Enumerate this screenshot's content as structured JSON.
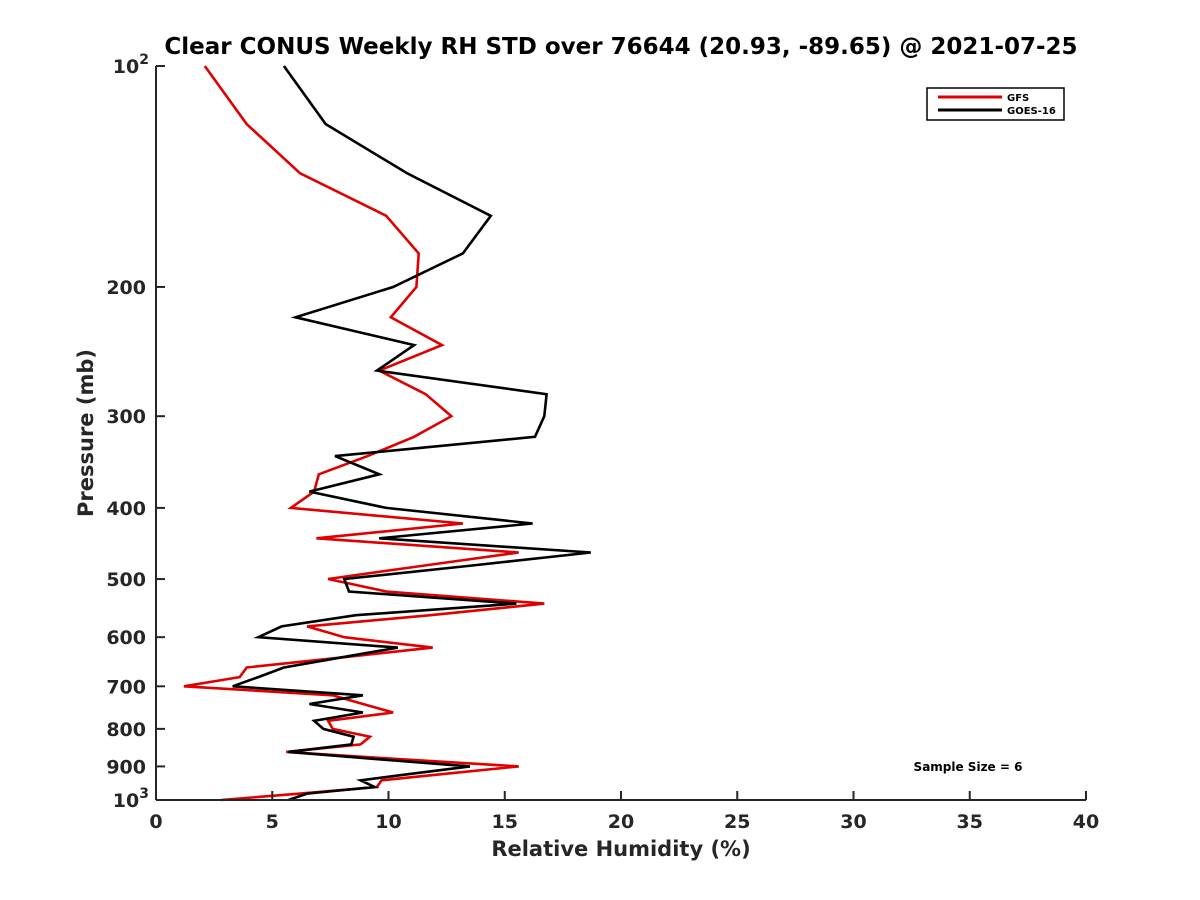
{
  "chart_data": {
    "type": "line",
    "title": "Clear CONUS Weekly RH STD over 76644 (20.93, -89.65) @ 2021-07-25",
    "xlabel": "Relative Humidity (%)",
    "ylabel": "Pressure (mb)",
    "xlim": [
      0,
      40
    ],
    "ylim": [
      100,
      1000
    ],
    "yscale": "log",
    "yreversed": true,
    "grid": false,
    "xticks": [
      0,
      5,
      10,
      15,
      20,
      25,
      30,
      35,
      40
    ],
    "xtick_labels": [
      "0",
      "5",
      "10",
      "15",
      "20",
      "25",
      "30",
      "35",
      "40"
    ],
    "yticks": [
      100,
      200,
      300,
      400,
      500,
      600,
      700,
      800,
      900,
      1000
    ],
    "ytick_labels": [
      {
        "base": "10",
        "exp": "2"
      },
      {
        "base": "200",
        "exp": ""
      },
      {
        "base": "300",
        "exp": ""
      },
      {
        "base": "400",
        "exp": ""
      },
      {
        "base": "500",
        "exp": ""
      },
      {
        "base": "600",
        "exp": ""
      },
      {
        "base": "700",
        "exp": ""
      },
      {
        "base": "800",
        "exp": ""
      },
      {
        "base": "900",
        "exp": ""
      },
      {
        "base": "10",
        "exp": "3"
      }
    ],
    "pressure": [
      100,
      120,
      140,
      160,
      180,
      200,
      220,
      240,
      260,
      280,
      300,
      320,
      340,
      360,
      380,
      400,
      420,
      440,
      460,
      480,
      500,
      520,
      540,
      560,
      580,
      600,
      620,
      640,
      660,
      680,
      700,
      720,
      740,
      760,
      780,
      800,
      820,
      840,
      860,
      880,
      900,
      920,
      940,
      960,
      980,
      1000
    ],
    "series": [
      {
        "name": "GFS",
        "color": "#e00000",
        "values": [
          2.1,
          3.9,
          6.2,
          9.9,
          11.3,
          11.2,
          10.1,
          12.3,
          9.6,
          11.6,
          12.7,
          11.1,
          9.1,
          7.0,
          6.8,
          5.8,
          13.2,
          6.9,
          15.6,
          11.4,
          7.4,
          9.9,
          16.7,
          11.8,
          6.5,
          8.1,
          11.9,
          7.9,
          3.9,
          3.6,
          1.2,
          7.6,
          8.9,
          10.2,
          7.4,
          7.6,
          9.2,
          8.8,
          5.6,
          10.6,
          15.6,
          12.6,
          9.7,
          9.5,
          6.2,
          2.8
        ]
      },
      {
        "name": "GOES-16",
        "color": "#000000",
        "values": [
          5.5,
          7.3,
          10.8,
          14.4,
          13.2,
          10.2,
          6.0,
          11.1,
          9.5,
          16.8,
          16.7,
          16.3,
          7.7,
          9.6,
          6.6,
          9.9,
          16.2,
          9.6,
          18.7,
          13.4,
          8.1,
          8.3,
          15.5,
          8.6,
          5.4,
          4.4,
          10.4,
          7.9,
          5.5,
          4.4,
          3.3,
          8.9,
          6.6,
          8.9,
          6.8,
          7.2,
          8.5,
          8.4,
          5.7,
          9.6,
          13.5,
          11.1,
          8.8,
          9.4,
          6.5,
          5.7
        ]
      }
    ],
    "legend": {
      "placement": "top-right",
      "entries": [
        "GFS",
        "GOES-16"
      ]
    },
    "annotation": "Sample Size = 6"
  }
}
